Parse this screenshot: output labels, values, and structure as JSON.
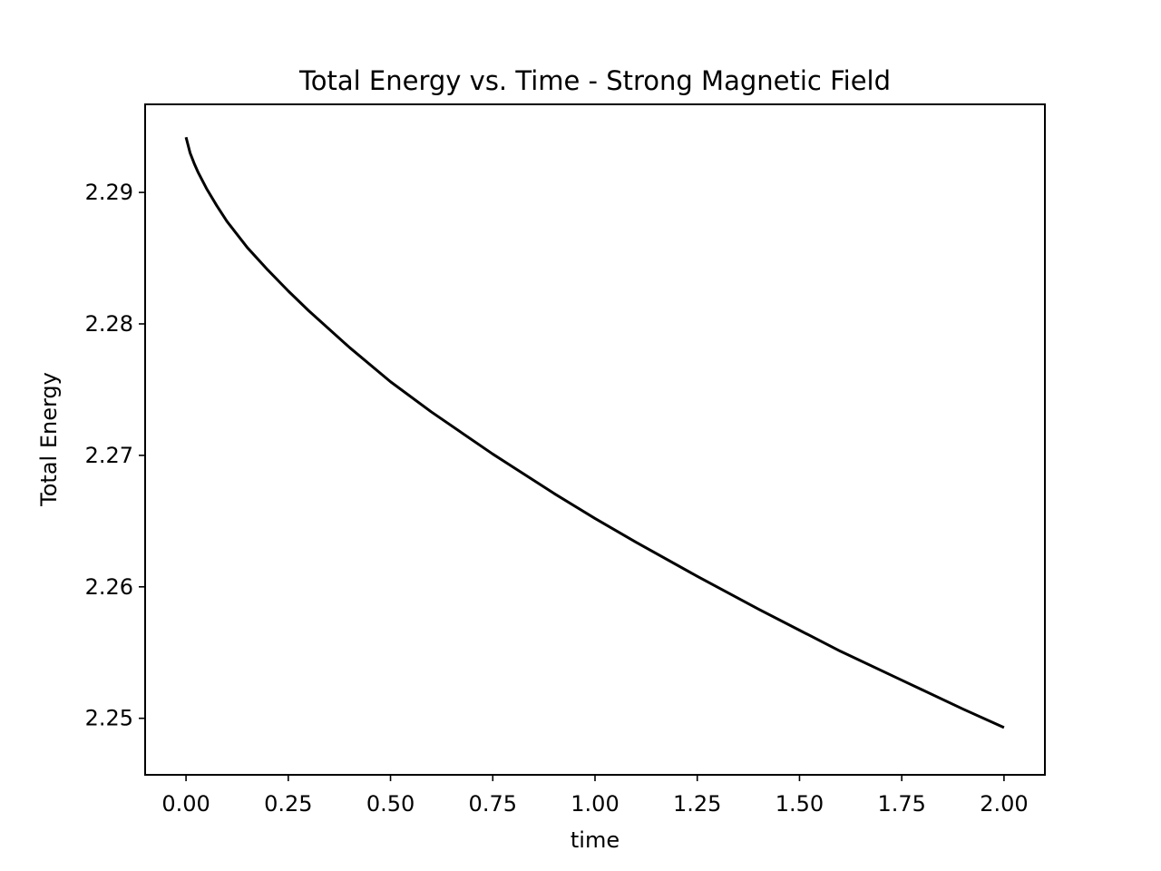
{
  "chart_data": {
    "type": "line",
    "title": "Total Energy vs. Time - Strong Magnetic Field",
    "xlabel": "time",
    "ylabel": "Total Energy",
    "xlim": [
      -0.1,
      2.1
    ],
    "ylim": [
      2.2457,
      2.2967
    ],
    "xticks": [
      0.0,
      0.25,
      0.5,
      0.75,
      1.0,
      1.25,
      1.5,
      1.75,
      2.0
    ],
    "xtick_labels": [
      "0.00",
      "0.25",
      "0.50",
      "0.75",
      "1.00",
      "1.25",
      "1.50",
      "1.75",
      "2.00"
    ],
    "yticks": [
      2.25,
      2.26,
      2.27,
      2.28,
      2.29
    ],
    "ytick_labels": [
      "2.25",
      "2.26",
      "2.27",
      "2.28",
      "2.29"
    ],
    "grid": false,
    "legend": "none",
    "series": [
      {
        "color": "#000000",
        "x": [
          0.0,
          0.01,
          0.02,
          0.03,
          0.05,
          0.075,
          0.1,
          0.15,
          0.2,
          0.25,
          0.3,
          0.4,
          0.5,
          0.6,
          0.75,
          0.9,
          1.0,
          1.1,
          1.25,
          1.4,
          1.5,
          1.6,
          1.75,
          1.9,
          2.0
        ],
        "y": [
          2.2942,
          2.293,
          2.2922,
          2.2915,
          2.2903,
          2.289,
          2.2878,
          2.2858,
          2.2841,
          2.2825,
          2.281,
          2.2782,
          2.2756,
          2.2733,
          2.2701,
          2.2671,
          2.2652,
          2.2634,
          2.2608,
          2.2583,
          2.2567,
          2.2551,
          2.2529,
          2.2507,
          2.2493
        ]
      }
    ]
  }
}
